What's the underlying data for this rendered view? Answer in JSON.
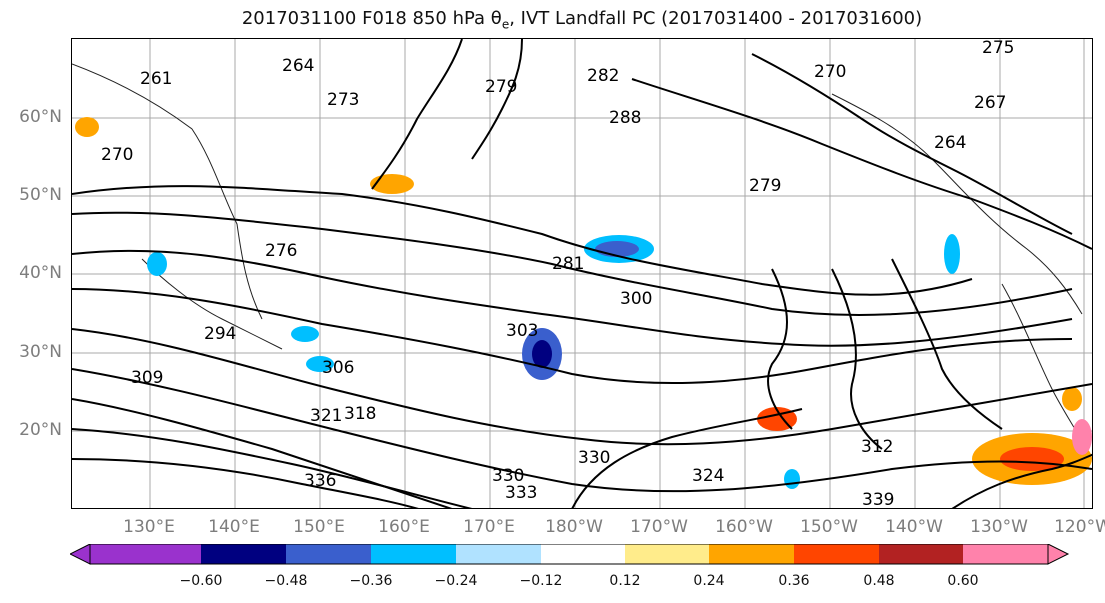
{
  "title": {
    "prefix": "2017031100 F018 850 hPa θ",
    "sub": "e",
    "suffix": ", IVT Landfall PC (2017031400 - 2017031600)"
  },
  "map": {
    "lat_labels": [
      "60°N",
      "50°N",
      "40°N",
      "30°N",
      "20°N"
    ],
    "lon_labels": [
      "130°E",
      "140°E",
      "150°E",
      "160°E",
      "170°E",
      "180°W",
      "170°W",
      "160°W",
      "150°W",
      "140°W",
      "130°W",
      "120°W"
    ],
    "contour_labels": [
      "261",
      "264",
      "273",
      "279",
      "282",
      "270",
      "267",
      "270",
      "288",
      "264",
      "279",
      "276",
      "281",
      "300",
      "294",
      "303",
      "306",
      "309",
      "318",
      "330",
      "324",
      "312",
      "330",
      "336",
      "339",
      "333",
      "321",
      "275"
    ]
  },
  "colorbar": {
    "levels": [
      "−0.60",
      "−0.48",
      "−0.36",
      "−0.24",
      "−0.12",
      "0.12",
      "0.24",
      "0.36",
      "0.48",
      "0.60"
    ],
    "colors": [
      "#9a32cd",
      "#000080",
      "#3a5fcd",
      "#00bfff",
      "#b0e2ff",
      "#ffffff",
      "#ffec8b",
      "#ffa500",
      "#ff4500",
      "#b22222",
      "#ff82ab",
      "#ff82ab"
    ]
  }
}
